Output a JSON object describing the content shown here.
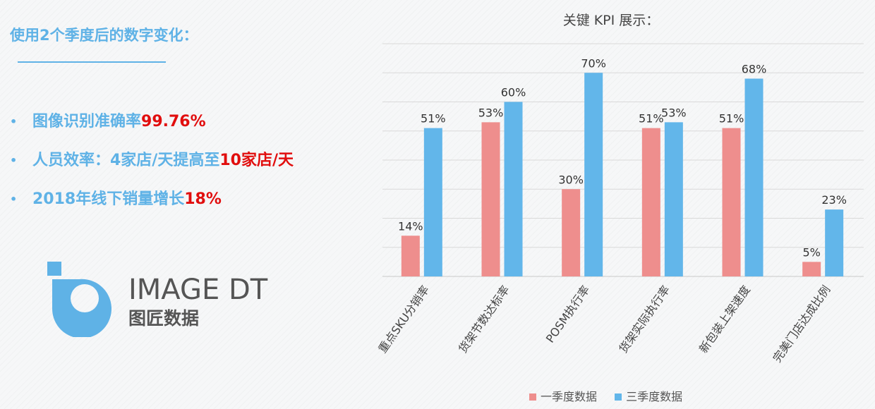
{
  "left_panel": {
    "heading": "使用2个季度后的数字变化：",
    "bullets": [
      {
        "dot": "•",
        "text": "图像识别准确率",
        "highlight": "99.76%"
      },
      {
        "dot": "•",
        "text": "人员效率：4家店/天提高至",
        "highlight": "10家店/天"
      },
      {
        "dot": "•",
        "text": "2018年线下销量增长",
        "highlight": "18%"
      }
    ]
  },
  "logo": {
    "brand_en": "IMAGE DT",
    "brand_cn": "图匠数据",
    "icon": "logo-mark-icon",
    "color": "#5fb2e6"
  },
  "colors": {
    "accent": "#5fb2e6",
    "highlight": "#e10e0e",
    "series1": "#ee8e8d",
    "series2": "#62b6ea"
  },
  "chart_data": {
    "type": "bar",
    "title": "关键 KPI 展示：",
    "categories": [
      "重点SKU分销率",
      "货架节数达标率",
      "POSM执行率",
      "货架实际执行率",
      "新包装上架速度",
      "完美门店达成比例"
    ],
    "series": [
      {
        "name": "一季度数据",
        "values": [
          14,
          53,
          30,
          51,
          51,
          5
        ],
        "labels": [
          "14%",
          "53%",
          "30%",
          "51%",
          "51%",
          "5%"
        ]
      },
      {
        "name": "三季度数据",
        "values": [
          51,
          60,
          70,
          53,
          68,
          23
        ],
        "labels": [
          "51%",
          "60%",
          "70%",
          "53%",
          "68%",
          "23%"
        ]
      }
    ],
    "ylim": [
      0,
      80
    ],
    "grid": true,
    "legend_position": "bottom"
  }
}
